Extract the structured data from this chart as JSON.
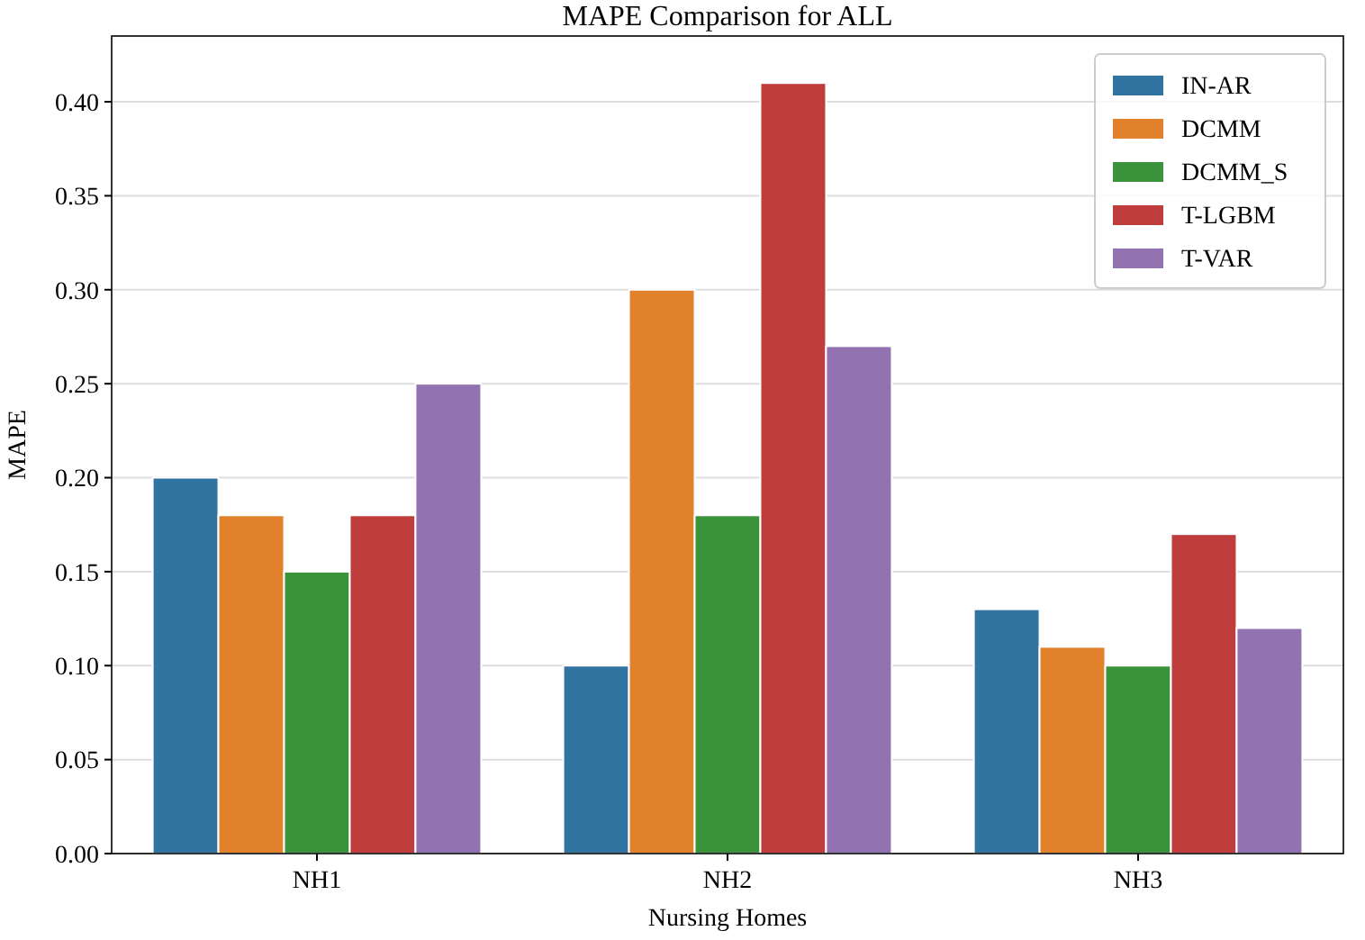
{
  "chart_data": {
    "type": "bar",
    "title": "MAPE Comparison for ALL",
    "xlabel": "Nursing Homes",
    "ylabel": "MAPE",
    "categories": [
      "NH1",
      "NH2",
      "NH3"
    ],
    "series": [
      {
        "name": "IN-AR",
        "color": "#3274a1",
        "values": [
          0.2,
          0.1,
          0.13
        ]
      },
      {
        "name": "DCMM",
        "color": "#e1812c",
        "values": [
          0.18,
          0.3,
          0.11
        ]
      },
      {
        "name": "DCMM_S",
        "color": "#3a923a",
        "values": [
          0.15,
          0.18,
          0.1
        ]
      },
      {
        "name": "T-LGBM",
        "color": "#c03d3e",
        "values": [
          0.18,
          0.41,
          0.17
        ]
      },
      {
        "name": "T-VAR",
        "color": "#9372b2",
        "values": [
          0.25,
          0.27,
          0.12
        ]
      }
    ],
    "ylim": [
      0,
      0.435
    ],
    "yticks": [
      {
        "value": 0,
        "label": "0.00"
      },
      {
        "value": 0.05,
        "label": "0.05"
      },
      {
        "value": 0.1,
        "label": "0.10"
      },
      {
        "value": 0.15,
        "label": "0.15"
      },
      {
        "value": 0.2,
        "label": "0.20"
      },
      {
        "value": 0.25,
        "label": "0.25"
      },
      {
        "value": 0.3,
        "label": "0.30"
      },
      {
        "value": 0.35,
        "label": "0.35"
      },
      {
        "value": 0.4,
        "label": "0.40"
      }
    ],
    "grid": "y",
    "legend": "top right"
  }
}
